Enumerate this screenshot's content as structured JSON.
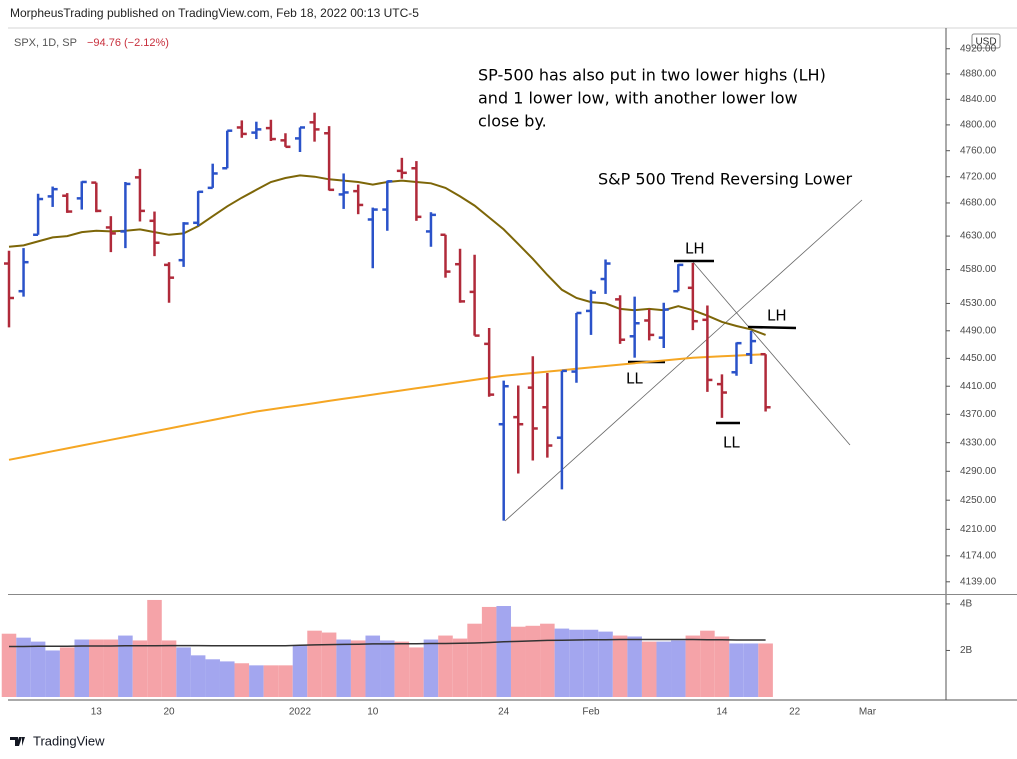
{
  "header": "MorpheusTrading published on TradingView.com, Feb 18, 2022 00:13 UTC-5",
  "footer": "TradingView",
  "chart_data": {
    "type": "ohlc",
    "symbol": "SPX, 1D, SP",
    "change": "−94.76 (−2.12%)",
    "currency": "USD",
    "log_scale": true,
    "categories": [
      null,
      null,
      null,
      null,
      null,
      null,
      "13",
      null,
      null,
      null,
      null,
      "20",
      null,
      null,
      null,
      null,
      null,
      null,
      null,
      null,
      "2022",
      null,
      null,
      null,
      null,
      "10",
      null,
      null,
      null,
      null,
      null,
      null,
      null,
      null,
      "24",
      null,
      null,
      null,
      null,
      null,
      "Feb",
      null,
      null,
      null,
      null,
      null,
      null,
      null,
      null,
      "14",
      null,
      null,
      null,
      null,
      "22",
      null,
      null,
      null,
      null,
      "Mar"
    ],
    "ohlc": {
      "up_color": "#2a52c9",
      "down_color": "#b02a3a",
      "open": [
        4589,
        4548,
        4632,
        4690,
        4691,
        4687,
        4711,
        4643,
        4637,
        4719,
        4653,
        4587,
        4594,
        4650,
        4703,
        4733,
        4796,
        4788,
        4795,
        4776,
        4779,
        4804,
        4787,
        4693,
        4698,
        4655,
        4670,
        4729,
        4733,
        4637,
        4632,
        4588,
        4547,
        4471,
        4356,
        4366,
        4408,
        4380,
        4337,
        4431,
        4519,
        4566,
        4536,
        4482,
        4505,
        4480,
        4548,
        4553,
        4506,
        4413,
        4430,
        4456,
        4456,
        null,
        null,
        null,
        null,
        null,
        null,
        null
      ],
      "high": [
        4608,
        4612,
        4694,
        4705,
        4695,
        4713,
        4711,
        4660,
        4712,
        4732,
        4667,
        4591,
        4651,
        4698,
        4740,
        4791,
        4807,
        4805,
        4808,
        4787,
        4796,
        4819,
        4798,
        4725,
        4708,
        4673,
        4714,
        4749,
        4744,
        4666,
        4632,
        4611,
        4602,
        4494,
        4418,
        4411,
        4453,
        4429,
        4432,
        4516,
        4550,
        4595,
        4542,
        4540,
        4522,
        4531,
        4588,
        4590,
        4527,
        4427,
        4473,
        4490,
        4456,
        null,
        null,
        null,
        null,
        null,
        null,
        null
      ],
      "low": [
        4495,
        4540,
        4632,
        4674,
        4665,
        4670,
        4666,
        4606,
        4612,
        4652,
        4600,
        4531,
        4584,
        4645,
        4703,
        4733,
        4780,
        4778,
        4775,
        4766,
        4758,
        4774,
        4699,
        4671,
        4663,
        4582,
        4638,
        4717,
        4653,
        4614,
        4568,
        4531,
        4483,
        4395,
        4222,
        4287,
        4305,
        4309,
        4265,
        4415,
        4484,
        4544,
        4471,
        4451,
        4476,
        4465,
        4548,
        4491,
        4402,
        4365,
        4425,
        4442,
        4374,
        null,
        null,
        null,
        null,
        null,
        null,
        null
      ],
      "close": [
        4538,
        4591,
        4686,
        4701,
        4667,
        4712,
        4668,
        4634,
        4709,
        4668,
        4620,
        4568,
        4649,
        4697,
        4725,
        4791,
        4786,
        4793,
        4778,
        4766,
        4796,
        4793,
        4700,
        4696,
        4677,
        4670,
        4713,
        4726,
        4659,
        4662,
        4577,
        4533,
        4483,
        4398,
        4410,
        4356,
        4350,
        4326,
        4432,
        4516,
        4546,
        4589,
        4477,
        4501,
        4484,
        4521,
        4587,
        4504,
        4419,
        4401,
        4472,
        4475,
        4380,
        null,
        null,
        null,
        null,
        null,
        null,
        null
      ]
    },
    "lines": [
      {
        "color": "#7d6608",
        "values": [
          4614,
          4616,
          4622,
          4628,
          4630,
          4636,
          4638,
          4637,
          4638,
          4640,
          4636,
          4632,
          4634,
          4645,
          4660,
          4675,
          4688,
          4700,
          4712,
          4718,
          4722,
          4720,
          4716,
          4714,
          4712,
          4708,
          4712,
          4714,
          4712,
          4710,
          4703,
          4690,
          4676,
          4658,
          4640,
          4618,
          4596,
          4572,
          4550,
          4538,
          4532,
          4530,
          4522,
          4520,
          4522,
          4520,
          4526,
          4520,
          4512,
          4503,
          4497,
          4492,
          4484,
          null,
          null,
          null,
          null,
          null,
          null,
          null
        ]
      },
      {
        "color": "#f5a623",
        "values": [
          4306,
          4310,
          4314,
          4318,
          4322,
          4326,
          4330,
          4334,
          4338,
          4342,
          4346,
          4350,
          4354,
          4358,
          4362,
          4366,
          4370,
          4374,
          4377,
          4380,
          4383,
          4386,
          4389,
          4392,
          4395,
          4398,
          4401,
          4404,
          4407,
          4410,
          4413,
          4416,
          4419,
          4422,
          4425,
          4427,
          4429,
          4431,
          4433,
          4435,
          4437,
          4439,
          4441,
          4443,
          4445,
          4447,
          4449,
          4451,
          4452,
          4453,
          4454,
          4455,
          4456,
          null,
          null,
          null,
          null,
          null,
          null,
          null
        ]
      }
    ],
    "ylim": [
      4124,
      4950
    ],
    "yticks": [
      {
        "value": 4920,
        "label": "4920.00"
      },
      {
        "value": 4880,
        "label": "4880.00"
      },
      {
        "value": 4840,
        "label": "4840.00"
      },
      {
        "value": 4800,
        "label": "4800.00"
      },
      {
        "value": 4760,
        "label": "4760.00"
      },
      {
        "value": 4720,
        "label": "4720.00"
      },
      {
        "value": 4680,
        "label": "4680.00"
      },
      {
        "value": 4630,
        "label": "4630.00"
      },
      {
        "value": 4580,
        "label": "4580.00"
      },
      {
        "value": 4530,
        "label": "4530.00"
      },
      {
        "value": 4490,
        "label": "4490.00"
      },
      {
        "value": 4450,
        "label": "4450.00"
      },
      {
        "value": 4410,
        "label": "4410.00"
      },
      {
        "value": 4370,
        "label": "4370.00"
      },
      {
        "value": 4330,
        "label": "4330.00"
      },
      {
        "value": 4290,
        "label": "4290.00"
      },
      {
        "value": 4250,
        "label": "4250.00"
      },
      {
        "value": 4210,
        "label": "4210.00"
      },
      {
        "value": 4174,
        "label": "4174.00"
      },
      {
        "value": 4139,
        "label": "4139.00"
      }
    ],
    "volume": {
      "up_color": "#a3a6ef",
      "down_color": "#f5a3a8",
      "values": [
        2.72,
        2.55,
        2.38,
        2.0,
        2.13,
        2.47,
        2.47,
        2.47,
        2.64,
        2.43,
        4.17,
        2.43,
        2.13,
        1.79,
        1.62,
        1.53,
        1.45,
        1.36,
        1.36,
        1.36,
        2.21,
        2.85,
        2.77,
        2.47,
        2.43,
        2.64,
        2.43,
        2.38,
        2.13,
        2.47,
        2.64,
        2.51,
        3.15,
        3.87,
        3.91,
        3.02,
        3.06,
        3.15,
        2.94,
        2.89,
        2.89,
        2.81,
        2.64,
        2.6,
        2.38,
        2.38,
        2.43,
        2.64,
        2.85,
        2.6,
        2.3,
        2.3,
        2.3,
        null,
        null,
        null,
        null,
        null,
        null,
        null
      ],
      "ma": {
        "color": "#333333",
        "values": [
          2.17,
          2.17,
          2.18,
          2.18,
          2.18,
          2.19,
          2.19,
          2.19,
          2.2,
          2.2,
          2.2,
          2.21,
          2.21,
          2.21,
          2.2,
          2.2,
          2.2,
          2.2,
          2.2,
          2.2,
          2.22,
          2.24,
          2.25,
          2.26,
          2.27,
          2.28,
          2.28,
          2.29,
          2.29,
          2.3,
          2.3,
          2.31,
          2.32,
          2.34,
          2.37,
          2.39,
          2.41,
          2.43,
          2.44,
          2.45,
          2.46,
          2.46,
          2.47,
          2.47,
          2.47,
          2.47,
          2.47,
          2.47,
          2.46,
          2.46,
          2.45,
          2.45,
          2.45,
          null,
          null,
          null,
          null,
          null,
          null,
          null
        ]
      },
      "ylim": [
        0,
        4.34
      ],
      "yticks": [
        {
          "value": 4,
          "label": "4B"
        },
        {
          "value": 2,
          "label": "2B"
        }
      ]
    },
    "annotations": {
      "note": [
        "SP-500 has also put in two lower highs (LH)",
        "and 1 lower low, with another lower low",
        "close by."
      ],
      "headline": "S&P 500 Trend Reversing Lower",
      "lh1": "LH",
      "lh2": "LH",
      "ll1": "LL",
      "ll2": "LL"
    }
  }
}
